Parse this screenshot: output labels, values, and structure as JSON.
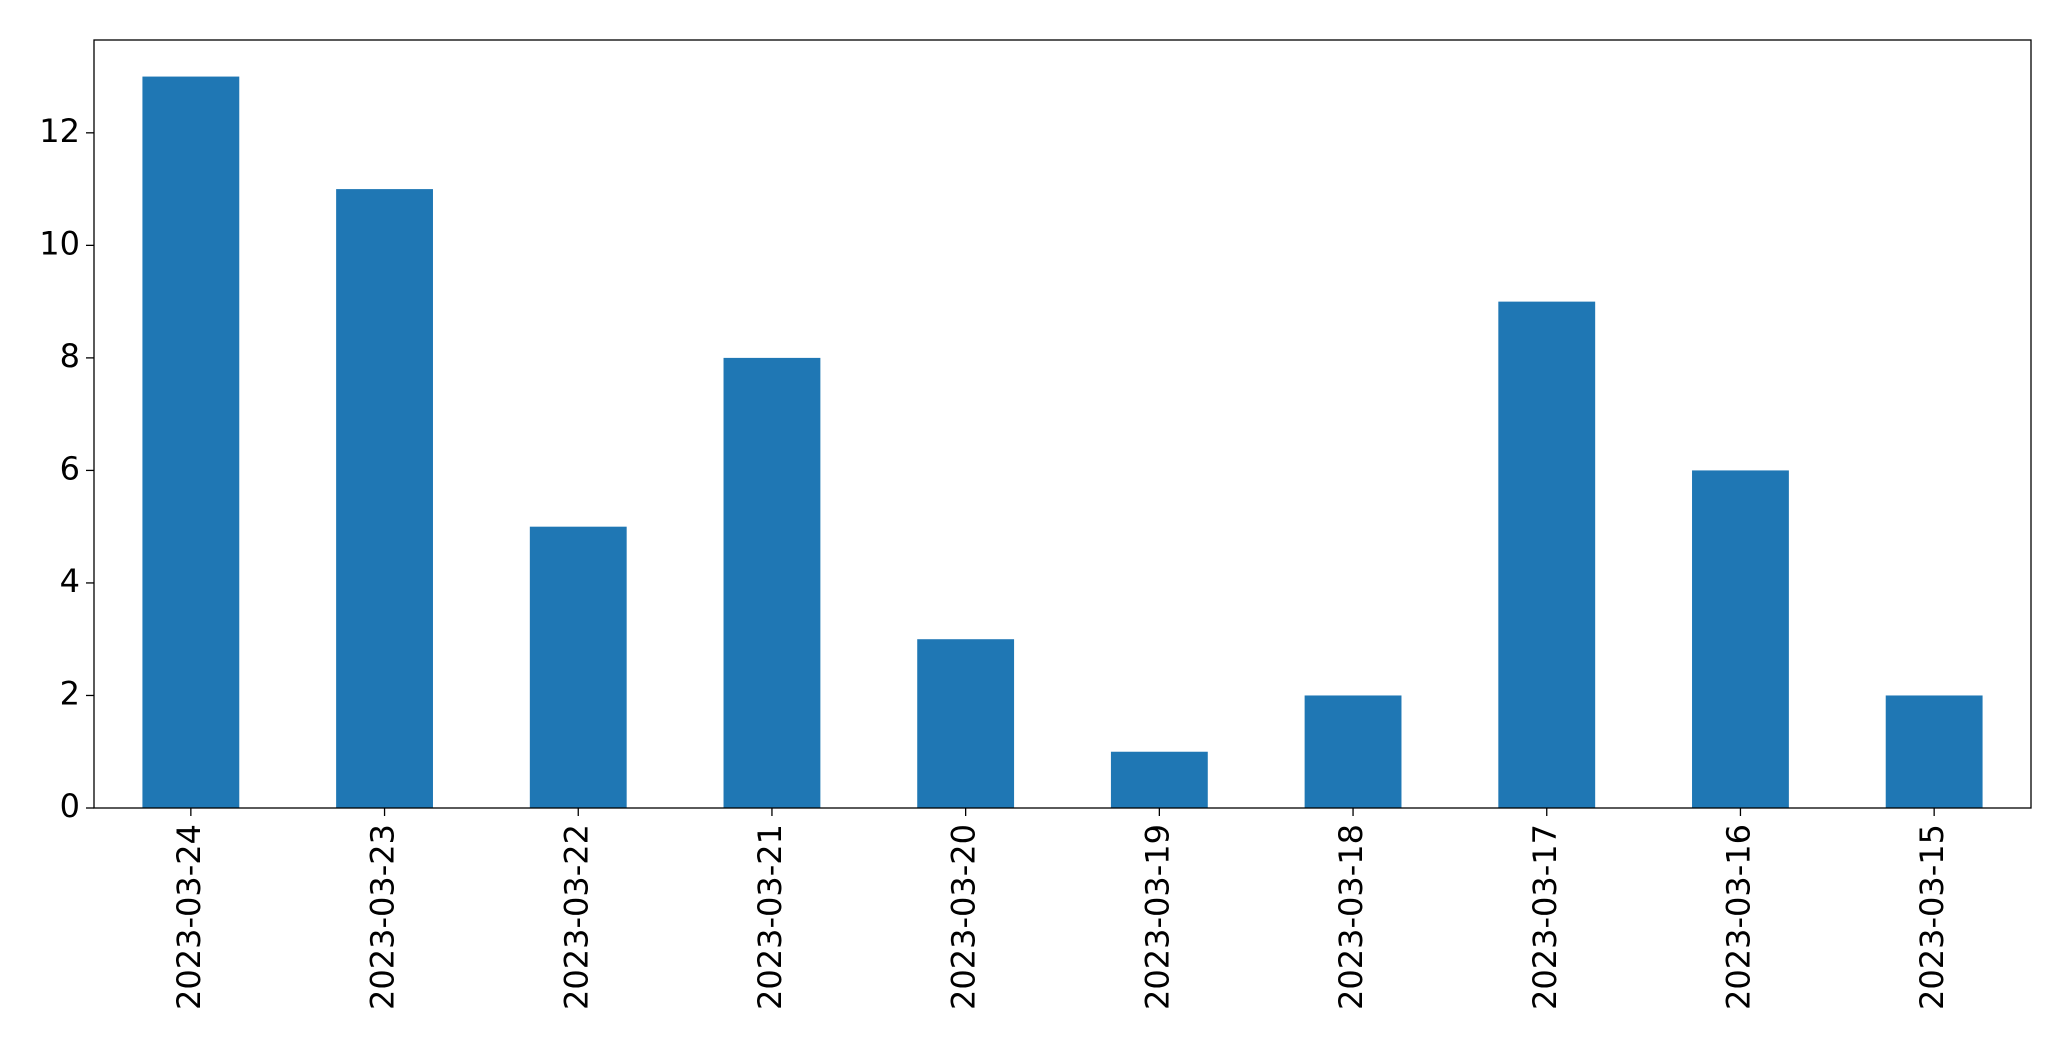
{
  "chart_data": {
    "type": "bar",
    "categories": [
      "2023-03-24",
      "2023-03-23",
      "2023-03-22",
      "2023-03-21",
      "2023-03-20",
      "2023-03-19",
      "2023-03-18",
      "2023-03-17",
      "2023-03-16",
      "2023-03-15"
    ],
    "values": [
      13,
      11,
      5,
      8,
      3,
      1,
      2,
      9,
      6,
      2
    ],
    "color": "#1f77b4",
    "ylim": [
      0,
      13.65
    ],
    "yticks": [
      0,
      2,
      4,
      6,
      8,
      10,
      12
    ],
    "grid": false
  }
}
